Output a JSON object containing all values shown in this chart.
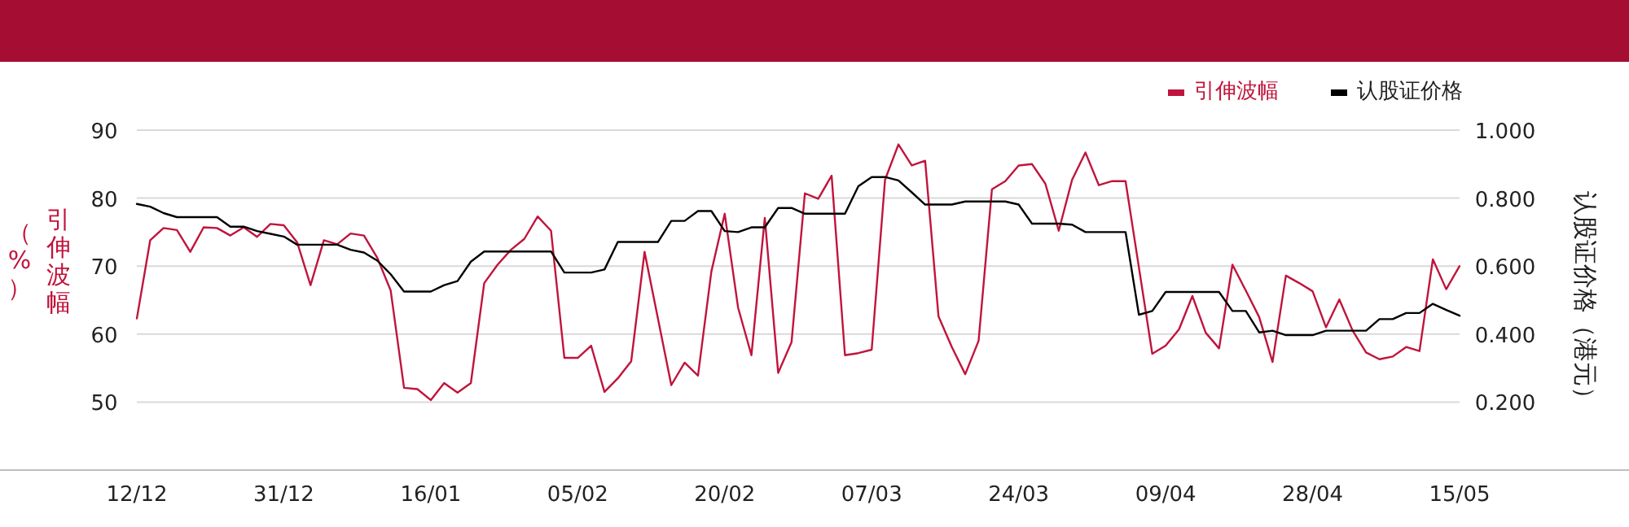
{
  "chart_data": {
    "type": "line",
    "ylabel": "引伸波幅（%）",
    "y2label": "认股证价格（港元）",
    "categories": [
      "12/12",
      null,
      null,
      null,
      null,
      null,
      null,
      null,
      null,
      null,
      null,
      "31/12",
      null,
      null,
      null,
      null,
      null,
      null,
      null,
      null,
      null,
      null,
      "16/01",
      null,
      null,
      null,
      null,
      null,
      null,
      null,
      null,
      null,
      null,
      "05/02",
      null,
      null,
      null,
      null,
      null,
      null,
      null,
      null,
      null,
      null,
      "20/02",
      null,
      null,
      null,
      null,
      null,
      null,
      null,
      null,
      null,
      null,
      "07/03",
      null,
      null,
      null,
      null,
      null,
      null,
      null,
      null,
      null,
      null,
      "24/03",
      null,
      null,
      null,
      null,
      null,
      null,
      null,
      null,
      null,
      null,
      "09/04",
      null,
      null,
      null,
      null,
      null,
      null,
      null,
      null,
      null,
      null,
      "28/04",
      null,
      null,
      null,
      null,
      null,
      null,
      null,
      null,
      null,
      null,
      "15/05"
    ],
    "series": [
      {
        "name": "引伸波幅",
        "color": "#c0143c",
        "values": [
          62.3,
          73.8,
          75.6,
          75.3,
          72.1,
          75.7,
          75.6,
          74.5,
          75.7,
          74.3,
          76.2,
          76.0,
          73.5,
          67.2,
          73.8,
          73.2,
          74.8,
          74.5,
          71.2,
          66.4,
          52.1,
          51.9,
          50.3,
          52.8,
          51.4,
          52.8,
          67.5,
          70.2,
          72.4,
          74.0,
          77.3,
          75.2,
          56.5,
          56.5,
          58.3,
          51.5,
          53.5,
          56.0,
          72.1,
          62.3,
          52.5,
          55.8,
          53.9,
          69.2,
          77.7,
          63.9,
          56.9,
          77.1,
          54.3,
          58.8,
          80.7,
          79.9,
          83.3,
          56.9,
          57.2,
          57.7,
          82.7,
          87.9,
          84.8,
          85.5,
          62.6,
          58.1,
          54.1,
          59.0,
          81.3,
          82.5,
          84.8,
          85.0,
          82.1,
          75.2,
          82.7,
          86.7,
          81.9,
          82.5,
          82.5,
          69.8,
          57.1,
          58.3,
          60.7,
          65.6,
          60.2,
          57.9,
          70.2,
          66.4,
          62.5,
          55.9,
          68.6,
          67.5,
          66.3,
          61.0,
          65.1,
          60.5,
          57.3,
          56.3,
          56.7,
          58.1,
          57.5,
          71.0,
          66.6,
          70.0
        ]
      },
      {
        "name": "认股证价格",
        "color": "#000000",
        "axis": "y2",
        "values": [
          0.783,
          0.775,
          0.756,
          0.744,
          0.744,
          0.744,
          0.744,
          0.716,
          0.716,
          0.703,
          0.695,
          0.687,
          0.663,
          0.663,
          0.663,
          0.663,
          0.648,
          0.64,
          0.616,
          0.576,
          0.525,
          0.525,
          0.525,
          0.544,
          0.556,
          0.613,
          0.643,
          0.643,
          0.643,
          0.643,
          0.643,
          0.643,
          0.581,
          0.581,
          0.581,
          0.59,
          0.671,
          0.671,
          0.671,
          0.671,
          0.733,
          0.733,
          0.762,
          0.762,
          0.703,
          0.7,
          0.714,
          0.714,
          0.771,
          0.771,
          0.754,
          0.754,
          0.754,
          0.754,
          0.835,
          0.862,
          0.862,
          0.852,
          0.817,
          0.781,
          0.781,
          0.781,
          0.79,
          0.79,
          0.79,
          0.79,
          0.781,
          0.725,
          0.725,
          0.725,
          0.722,
          0.7,
          0.7,
          0.7,
          0.7,
          0.457,
          0.468,
          0.524,
          0.524,
          0.524,
          0.524,
          0.524,
          0.468,
          0.468,
          0.405,
          0.41,
          0.397,
          0.397,
          0.397,
          0.41,
          0.41,
          0.41,
          0.41,
          0.444,
          0.444,
          0.462,
          0.462,
          0.489,
          0.471,
          0.454
        ]
      }
    ],
    "ylim": [
      40,
      90
    ],
    "yticks": [
      50,
      60,
      70,
      80,
      90
    ],
    "y2lim": [
      0,
      1.0
    ],
    "y2ticks": [
      {
        "value": 0.2,
        "label": "0.200"
      },
      {
        "value": 0.4,
        "label": "0.400"
      },
      {
        "value": 0.6,
        "label": "0.600"
      },
      {
        "value": 0.8,
        "label": "0.800"
      },
      {
        "value": 1.0,
        "label": "1.000"
      }
    ],
    "grid": "y",
    "legend": "top right",
    "marker": "none",
    "line_style": "solid"
  }
}
